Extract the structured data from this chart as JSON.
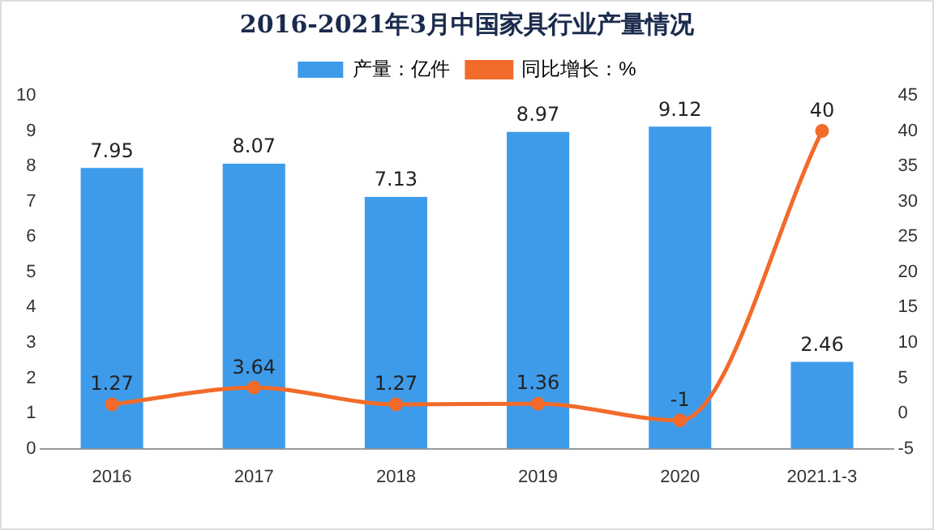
{
  "chart_data": {
    "type": "bar",
    "title": "2016-2021年3月中国家具行业产量情况",
    "categories": [
      "2016",
      "2017",
      "2018",
      "2019",
      "2020",
      "2021.1-3"
    ],
    "series": [
      {
        "name": "产量：亿件",
        "color": "#3e9bea",
        "values": [
          7.95,
          8.07,
          7.13,
          8.97,
          9.12,
          2.46
        ]
      },
      {
        "name": "同比增长：%",
        "type": "line",
        "axis": "y2",
        "color": "#f26b2a",
        "marker": "circle",
        "values": [
          1.27,
          3.64,
          1.27,
          1.36,
          -1,
          40
        ]
      }
    ],
    "ylim": [
      0,
      10
    ],
    "yticks": [
      0,
      1,
      2,
      3,
      4,
      5,
      6,
      7,
      8,
      9,
      10
    ],
    "y2lim": [
      -5,
      45
    ],
    "y2ticks": [
      -5,
      0,
      5,
      10,
      15,
      20,
      25,
      30,
      35,
      40,
      45
    ],
    "legend": "top",
    "grid": false,
    "data_labels": true
  }
}
